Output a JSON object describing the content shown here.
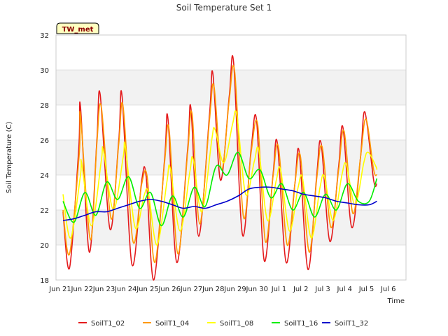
{
  "chart_data": {
    "type": "line",
    "title": "Soil Temperature Set 1",
    "xlabel": "Time",
    "ylabel": "Soil Temperature (C)",
    "badge": "TW_met",
    "ylim": [
      18,
      32
    ],
    "yticks": [
      18,
      20,
      22,
      24,
      26,
      28,
      30,
      32
    ],
    "xlim": [
      0,
      16
    ],
    "xticks": [
      {
        "x": 0,
        "label": "Jun 21"
      },
      {
        "x": 1,
        "label": "Jun 22"
      },
      {
        "x": 2,
        "label": "Jun 23"
      },
      {
        "x": 3,
        "label": "Jun 24"
      },
      {
        "x": 4,
        "label": "Jun 25"
      },
      {
        "x": 5,
        "label": "Jun 26"
      },
      {
        "x": 6,
        "label": "Jun 27"
      },
      {
        "x": 7,
        "label": "Jun 28"
      },
      {
        "x": 8,
        "label": "Jun 29"
      },
      {
        "x": 9,
        "label": "Jun 30"
      },
      {
        "x": 10,
        "label": "Jul 1"
      },
      {
        "x": 11,
        "label": "Jul 2"
      },
      {
        "x": 12,
        "label": "Jul 3"
      },
      {
        "x": 13,
        "label": "Jul 4"
      },
      {
        "x": 14,
        "label": "Jul 5"
      },
      {
        "x": 15,
        "label": "Jul 6"
      }
    ],
    "grid": true,
    "legend_position": "bottom",
    "series": [
      {
        "name": "SoilT1_02",
        "color": "#e41a1c",
        "x": [
          0.0,
          0.3,
          0.72,
          0.8,
          1.2,
          1.55,
          1.7,
          2.15,
          2.55,
          2.7,
          3.15,
          3.6,
          3.8,
          4.15,
          4.65,
          4.8,
          5.2,
          5.7,
          5.85,
          6.2,
          6.7,
          6.85,
          7.2,
          7.6,
          7.8,
          8.2,
          8.6,
          8.85,
          9.2,
          9.6,
          9.8,
          10.2,
          10.6,
          10.8,
          11.2,
          11.6,
          11.8,
          12.2,
          12.6,
          12.8,
          13.2,
          13.6,
          13.8,
          14.2,
          14.35
        ],
        "y": [
          21.9,
          18.7,
          25.5,
          27.9,
          19.6,
          26.0,
          28.6,
          20.9,
          26.0,
          28.5,
          18.9,
          23.7,
          23.9,
          18.0,
          25.0,
          27.2,
          19.0,
          25.5,
          27.8,
          20.5,
          27.5,
          29.8,
          23.7,
          28.5,
          30.4,
          20.6,
          25.5,
          27.1,
          19.1,
          24.0,
          25.8,
          19.0,
          23.5,
          25.3,
          18.6,
          24.0,
          25.8,
          20.2,
          24.5,
          26.7,
          21.0,
          25.0,
          27.6,
          23.7,
          23.5
        ]
      },
      {
        "name": "SoilT1_04",
        "color": "#ff9900",
        "x": [
          0.0,
          0.3,
          0.75,
          0.8,
          1.25,
          1.55,
          1.75,
          2.2,
          2.55,
          2.75,
          3.2,
          3.6,
          3.85,
          4.2,
          4.65,
          4.85,
          5.25,
          5.7,
          5.9,
          6.25,
          6.7,
          6.9,
          7.25,
          7.6,
          7.85,
          8.25,
          8.6,
          8.9,
          9.25,
          9.6,
          9.85,
          10.25,
          10.6,
          10.85,
          11.25,
          11.6,
          11.85,
          12.25,
          12.6,
          12.85,
          13.25,
          13.6,
          13.85,
          14.2,
          14.35
        ],
        "y": [
          22.0,
          19.5,
          25.3,
          27.4,
          20.3,
          25.8,
          27.9,
          21.5,
          25.8,
          27.9,
          20.2,
          23.5,
          23.9,
          19.0,
          24.8,
          26.6,
          19.5,
          25.3,
          27.5,
          21.2,
          27.2,
          29.1,
          24.3,
          28.3,
          29.9,
          21.6,
          25.3,
          26.9,
          20.2,
          23.9,
          25.6,
          20.0,
          23.5,
          25.1,
          19.6,
          23.8,
          25.6,
          21.0,
          24.3,
          26.5,
          21.8,
          25.0,
          27.2,
          24.3,
          24.0
        ]
      },
      {
        "name": "SoilT1_08",
        "color": "#ffff00",
        "x": [
          0.0,
          0.35,
          0.8,
          0.85,
          1.3,
          1.75,
          1.85,
          2.3,
          2.75,
          2.85,
          3.3,
          3.7,
          3.9,
          4.3,
          4.75,
          4.9,
          5.35,
          5.8,
          5.95,
          6.35,
          6.8,
          6.95,
          7.35,
          7.75,
          7.95,
          8.35,
          8.75,
          8.95,
          9.35,
          9.75,
          9.95,
          10.35,
          10.75,
          10.95,
          11.35,
          11.75,
          11.95,
          12.35,
          12.75,
          12.95,
          13.35,
          13.75,
          13.95,
          14.3,
          14.35
        ],
        "y": [
          22.9,
          20.4,
          24.0,
          24.7,
          21.1,
          24.8,
          25.4,
          22.0,
          25.0,
          25.6,
          21.0,
          22.8,
          23.0,
          20.0,
          23.6,
          24.4,
          20.8,
          24.2,
          24.9,
          21.9,
          26.0,
          26.6,
          24.7,
          26.9,
          27.4,
          22.9,
          24.8,
          25.4,
          21.4,
          23.7,
          24.3,
          20.8,
          23.3,
          23.8,
          20.4,
          23.3,
          23.9,
          21.4,
          24.0,
          24.6,
          22.3,
          24.7,
          25.3,
          24.5,
          24.3
        ]
      },
      {
        "name": "SoilT1_16",
        "color": "#00ee00",
        "x": [
          0.0,
          0.5,
          1.0,
          1.5,
          2.0,
          2.5,
          3.0,
          3.5,
          4.0,
          4.5,
          5.0,
          5.5,
          6.0,
          6.5,
          7.0,
          7.5,
          8.0,
          8.5,
          9.0,
          9.5,
          10.0,
          10.5,
          11.0,
          11.5,
          12.0,
          12.5,
          13.0,
          13.5,
          14.0,
          14.35
        ],
        "y": [
          22.5,
          21.3,
          23.0,
          21.7,
          23.6,
          22.6,
          23.9,
          22.1,
          23.0,
          21.1,
          22.8,
          21.6,
          23.3,
          22.2,
          24.5,
          24.0,
          25.3,
          23.8,
          24.3,
          22.7,
          23.5,
          22.0,
          23.0,
          21.6,
          22.9,
          22.0,
          23.5,
          22.5,
          22.5,
          23.8
        ]
      },
      {
        "name": "SoilT1_32",
        "color": "#0000cc",
        "x": [
          0.0,
          0.5,
          1.0,
          1.5,
          2.0,
          2.5,
          3.0,
          3.5,
          4.0,
          4.5,
          5.0,
          5.5,
          6.0,
          6.5,
          7.0,
          7.5,
          8.0,
          8.5,
          9.0,
          9.5,
          10.0,
          10.5,
          11.0,
          11.5,
          12.0,
          12.5,
          13.0,
          13.5,
          14.0,
          14.35
        ],
        "y": [
          21.4,
          21.5,
          21.7,
          21.9,
          21.9,
          22.1,
          22.3,
          22.5,
          22.6,
          22.5,
          22.3,
          22.1,
          22.2,
          22.1,
          22.3,
          22.5,
          22.8,
          23.2,
          23.3,
          23.3,
          23.2,
          23.1,
          22.9,
          22.8,
          22.7,
          22.5,
          22.4,
          22.3,
          22.3,
          22.5
        ]
      }
    ]
  }
}
